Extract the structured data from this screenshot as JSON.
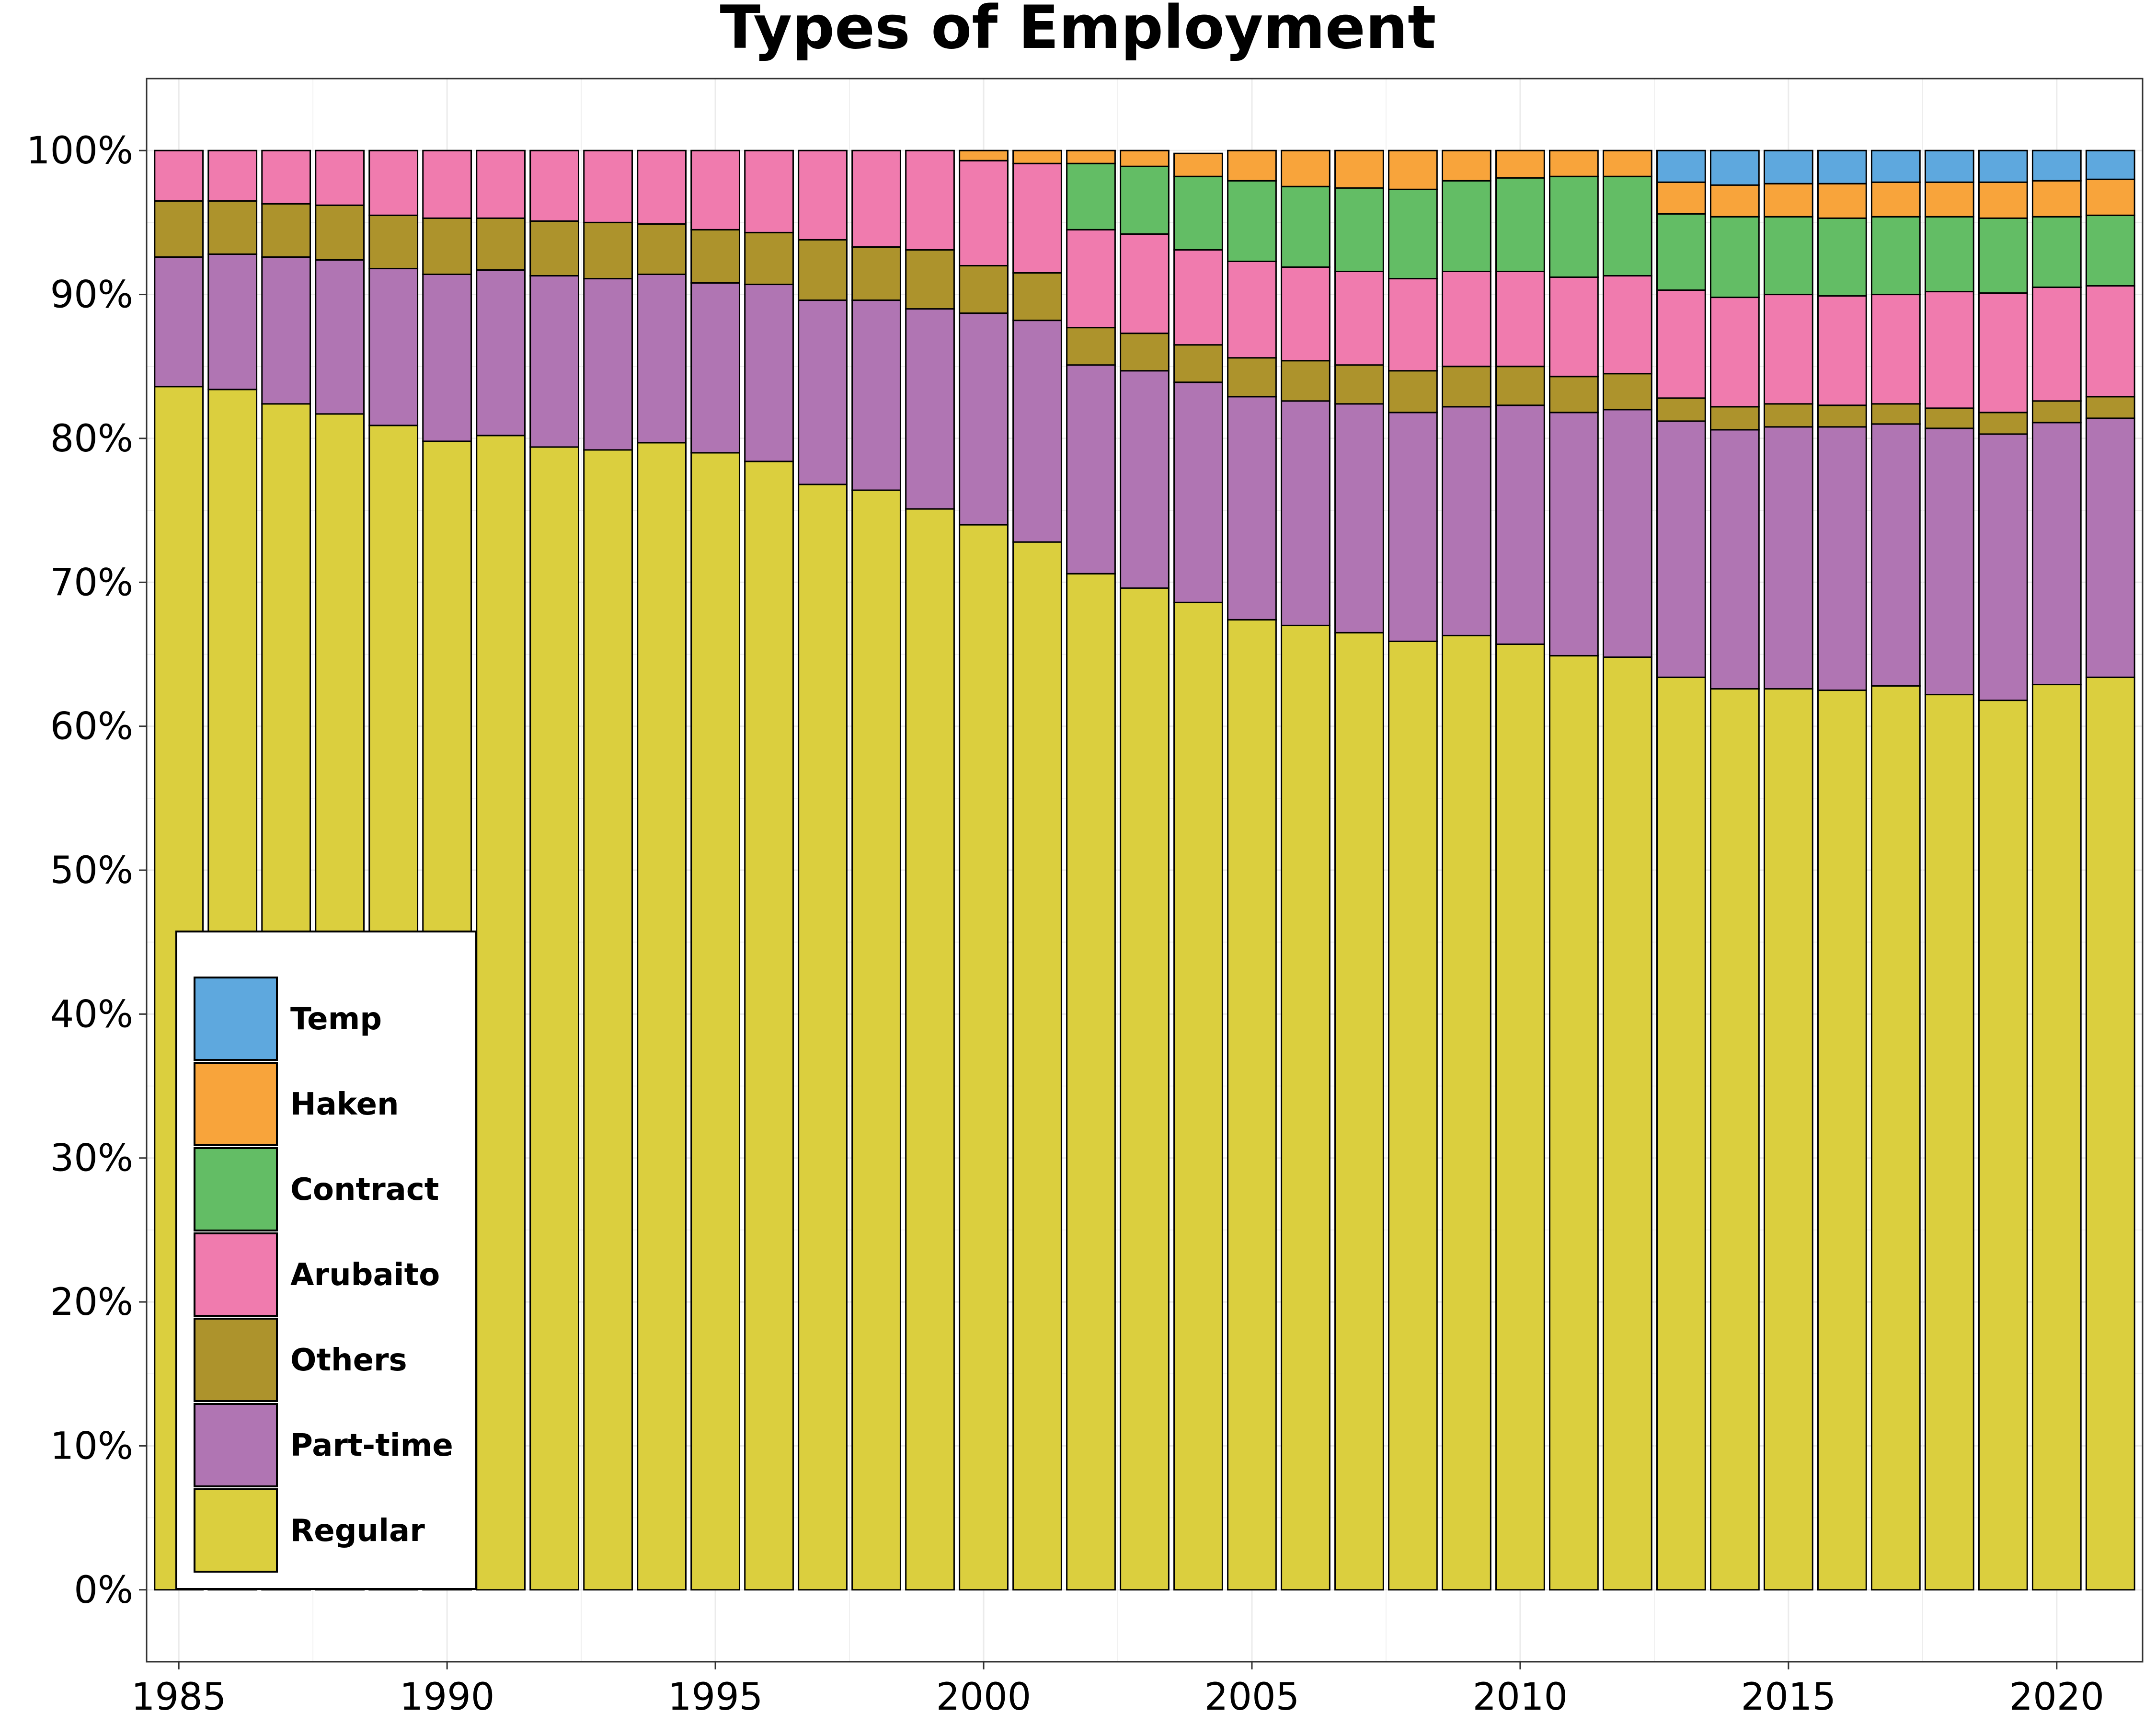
{
  "chart_data": {
    "type": "bar",
    "stacked": true,
    "title": "Types of Employment",
    "xlabel": "",
    "ylabel": "",
    "x": [
      1985,
      1986,
      1987,
      1988,
      1989,
      1990,
      1991,
      1992,
      1993,
      1994,
      1995,
      1996,
      1997,
      1998,
      1999,
      2000,
      2001,
      2002,
      2003,
      2004,
      2005,
      2006,
      2007,
      2008,
      2009,
      2010,
      2011,
      2012,
      2013,
      2014,
      2015,
      2016,
      2017,
      2018,
      2019,
      2020,
      2021
    ],
    "xlim": [
      1984.4,
      2021.6
    ],
    "xticks": [
      1985,
      1990,
      1995,
      2000,
      2005,
      2010,
      2015,
      2020
    ],
    "xtick_labels": [
      "1985",
      "1990",
      "1995",
      "2000",
      "2005",
      "2010",
      "2015",
      "2020"
    ],
    "ylim": [
      -5,
      105
    ],
    "yticks": [
      0,
      10,
      20,
      30,
      40,
      50,
      60,
      70,
      80,
      90,
      100
    ],
    "ytick_labels": [
      "0%",
      "10%",
      "20%",
      "30%",
      "40%",
      "50%",
      "60%",
      "70%",
      "80%",
      "90%",
      "100%"
    ],
    "grid": true,
    "legend_position": "bottom-left",
    "series": [
      {
        "name": "Regular",
        "color": "#dbcf3e",
        "values": [
          83.6,
          83.4,
          82.4,
          81.7,
          80.9,
          79.8,
          80.2,
          79.4,
          79.2,
          79.7,
          79.0,
          78.4,
          76.8,
          76.4,
          75.1,
          74.0,
          72.8,
          70.6,
          69.6,
          68.6,
          67.4,
          67.0,
          66.5,
          65.9,
          66.3,
          65.7,
          64.9,
          64.8,
          63.4,
          62.6,
          62.6,
          62.5,
          62.8,
          62.2,
          61.8,
          62.9,
          63.4
        ]
      },
      {
        "name": "Part-time",
        "color": "#b075b3",
        "values": [
          9.0,
          9.4,
          10.2,
          10.7,
          10.9,
          11.6,
          11.5,
          11.9,
          11.9,
          11.7,
          11.8,
          12.3,
          12.8,
          13.2,
          13.9,
          14.7,
          15.4,
          14.5,
          15.1,
          15.3,
          15.5,
          15.6,
          15.9,
          15.9,
          15.9,
          16.6,
          16.9,
          17.2,
          17.8,
          18.0,
          18.2,
          18.3,
          18.2,
          18.5,
          18.5,
          18.2,
          18.0
        ]
      },
      {
        "name": "Others",
        "color": "#ad932c",
        "values": [
          3.9,
          3.7,
          3.7,
          3.8,
          3.7,
          3.9,
          3.6,
          3.8,
          3.9,
          3.5,
          3.7,
          3.6,
          4.2,
          3.7,
          4.1,
          3.3,
          3.3,
          2.6,
          2.6,
          2.6,
          2.7,
          2.8,
          2.7,
          2.9,
          2.8,
          2.7,
          2.5,
          2.5,
          1.6,
          1.6,
          1.6,
          1.5,
          1.4,
          1.4,
          1.5,
          1.5,
          1.5
        ]
      },
      {
        "name": "Arubaito",
        "color": "#f07bae",
        "values": [
          3.5,
          3.5,
          3.7,
          3.8,
          4.5,
          4.7,
          4.7,
          4.9,
          5.0,
          5.1,
          5.5,
          5.7,
          6.2,
          6.7,
          6.9,
          7.3,
          7.6,
          6.8,
          6.9,
          6.6,
          6.7,
          6.5,
          6.5,
          6.4,
          6.6,
          6.6,
          6.9,
          6.8,
          7.5,
          7.6,
          7.6,
          7.6,
          7.6,
          8.1,
          8.3,
          7.9,
          7.7
        ]
      },
      {
        "name": "Contract",
        "color": "#63bd65",
        "values": [
          0,
          0,
          0,
          0,
          0,
          0,
          0,
          0,
          0,
          0,
          0,
          0,
          0,
          0,
          0,
          0,
          0,
          4.6,
          4.7,
          5.1,
          5.6,
          5.6,
          5.8,
          6.2,
          6.3,
          6.5,
          7.0,
          6.9,
          5.3,
          5.6,
          5.4,
          5.4,
          5.4,
          5.2,
          5.2,
          4.9,
          4.9
        ]
      },
      {
        "name": "Haken",
        "color": "#f8a43b",
        "values": [
          0,
          0,
          0,
          0,
          0,
          0,
          0,
          0,
          0,
          0,
          0,
          0,
          0,
          0,
          0,
          0.7,
          0.9,
          0.9,
          1.1,
          1.6,
          2.1,
          2.5,
          2.6,
          2.7,
          2.1,
          1.9,
          1.8,
          1.8,
          2.2,
          2.2,
          2.3,
          2.4,
          2.4,
          2.4,
          2.5,
          2.5,
          2.5
        ]
      },
      {
        "name": "Temp",
        "color": "#5ea8de",
        "values": [
          0,
          0,
          0,
          0,
          0,
          0,
          0,
          0,
          0,
          0,
          0,
          0,
          0,
          0,
          0,
          0,
          0,
          0,
          0,
          0,
          0,
          0,
          0,
          0,
          0,
          0,
          0,
          0,
          2.2,
          2.4,
          2.3,
          2.3,
          2.2,
          2.2,
          2.2,
          2.1,
          2.0
        ]
      }
    ]
  }
}
